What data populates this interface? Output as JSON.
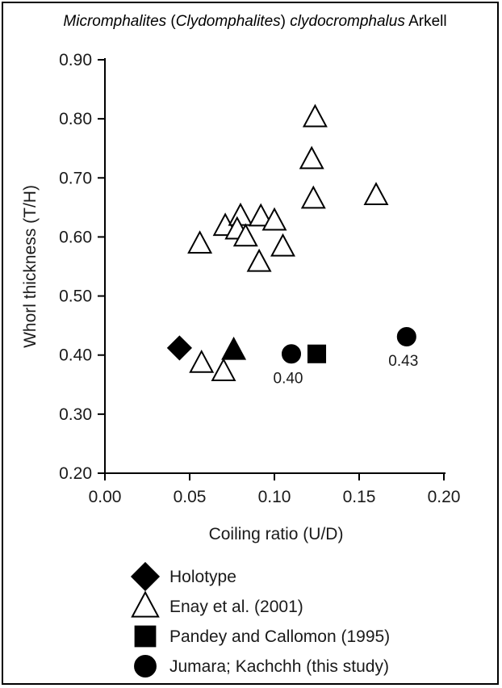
{
  "chart_data": {
    "type": "scatter",
    "title_parts": [
      {
        "text": "Micromphalites",
        "italic": true
      },
      {
        "text": " (",
        "italic": false
      },
      {
        "text": "Clydomphalites",
        "italic": true
      },
      {
        "text": ") ",
        "italic": false
      },
      {
        "text": "clydocromphalus",
        "italic": true
      },
      {
        "text": " Arkell",
        "italic": false
      }
    ],
    "xlabel": "Coiling ratio (U/D)",
    "ylabel": "Whorl thickness (T/H)",
    "xlim": [
      0.0,
      0.2
    ],
    "ylim": [
      0.2,
      0.9
    ],
    "xticks": [
      "0.00",
      "0.05",
      "0.10",
      "0.15",
      "0.20"
    ],
    "yticks": [
      "0.20",
      "0.30",
      "0.40",
      "0.50",
      "0.60",
      "0.70",
      "0.80",
      "0.90"
    ],
    "grid": false,
    "legend_position": "bottom",
    "series": [
      {
        "name": "Holotype",
        "marker": "diamond",
        "filled": true,
        "points": [
          {
            "x": 0.044,
            "y": 0.412
          }
        ]
      },
      {
        "name": "Enay et al. (2001)",
        "marker": "triangle",
        "filled": false,
        "points": [
          {
            "x": 0.056,
            "y": 0.588
          },
          {
            "x": 0.071,
            "y": 0.618
          },
          {
            "x": 0.08,
            "y": 0.635
          },
          {
            "x": 0.078,
            "y": 0.612
          },
          {
            "x": 0.083,
            "y": 0.6
          },
          {
            "x": 0.092,
            "y": 0.634
          },
          {
            "x": 0.1,
            "y": 0.627
          },
          {
            "x": 0.091,
            "y": 0.557
          },
          {
            "x": 0.105,
            "y": 0.583
          },
          {
            "x": 0.122,
            "y": 0.731
          },
          {
            "x": 0.124,
            "y": 0.802
          },
          {
            "x": 0.123,
            "y": 0.664
          },
          {
            "x": 0.16,
            "y": 0.67
          },
          {
            "x": 0.057,
            "y": 0.386
          },
          {
            "x": 0.07,
            "y": 0.372
          }
        ]
      },
      {
        "name": "",
        "marker": "triangle",
        "filled": true,
        "points": [
          {
            "x": 0.076,
            "y": 0.408
          }
        ]
      },
      {
        "name": "Pandey and Callomon (1995)",
        "marker": "square",
        "filled": true,
        "points": [
          {
            "x": 0.125,
            "y": 0.402
          }
        ]
      },
      {
        "name": "Jumara; Kachchh (this study)",
        "marker": "circle",
        "filled": true,
        "points": [
          {
            "x": 0.11,
            "y": 0.402,
            "label": "0.40"
          },
          {
            "x": 0.178,
            "y": 0.431,
            "label": "0.43"
          }
        ]
      }
    ],
    "legend": [
      {
        "label": "Holotype",
        "marker": "diamond",
        "filled": true
      },
      {
        "label": "Enay et al. (2001)",
        "marker": "triangle",
        "filled": false
      },
      {
        "label": "Pandey and Callomon (1995)",
        "marker": "square",
        "filled": true
      },
      {
        "label": "Jumara; Kachchh (this study)",
        "marker": "circle",
        "filled": true
      }
    ]
  }
}
